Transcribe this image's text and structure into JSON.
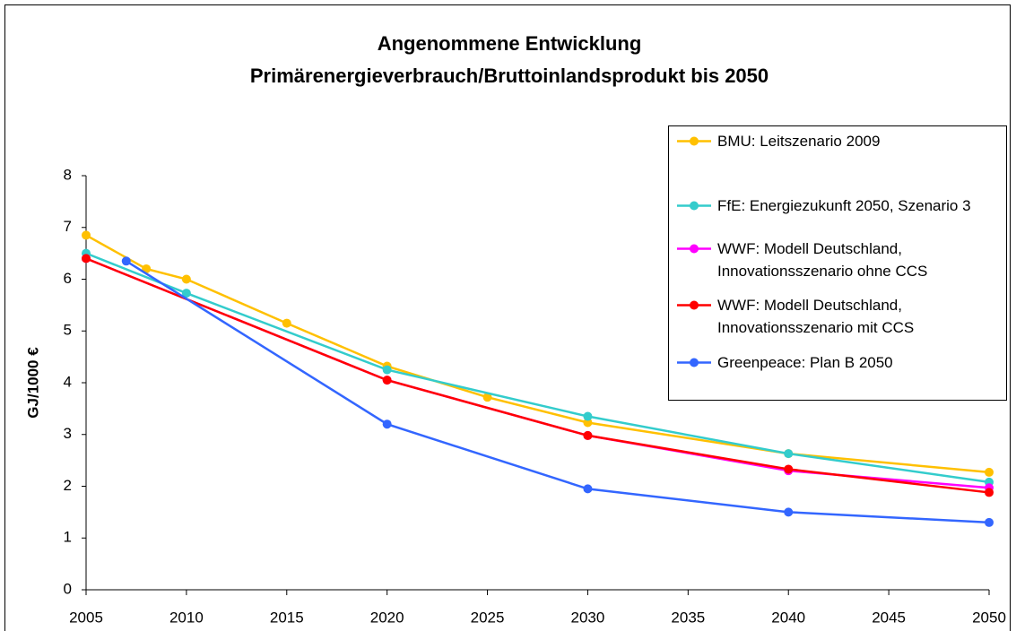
{
  "chart_data": {
    "type": "line",
    "title": [
      "Angenommene Entwicklung",
      "Primärenergieverbrauch/Bruttoinlandsprodukt bis 2050"
    ],
    "y_label": "GJ/1000 €",
    "xlim": [
      2005,
      2050
    ],
    "xticks": [
      2005,
      2010,
      2015,
      2020,
      2025,
      2030,
      2035,
      2040,
      2045,
      2050
    ],
    "ylim": [
      0,
      8
    ],
    "yticks": [
      0,
      1,
      2,
      3,
      4,
      5,
      6,
      7,
      8
    ],
    "legend": "upper right",
    "series": [
      {
        "name": "BMU: Leitszenario 2009",
        "color": "#ffc000",
        "x": [
          2005,
          2008,
          2010,
          2015,
          2020,
          2025,
          2030,
          2040,
          2050
        ],
        "values": [
          6.85,
          6.2,
          6.0,
          5.15,
          4.32,
          3.72,
          3.23,
          2.63,
          2.27
        ]
      },
      {
        "name": "FfE: Energiezukunft 2050, Szenario 3",
        "color": "#33cccc",
        "x": [
          2005,
          2010,
          2020,
          2030,
          2040,
          2050
        ],
        "values": [
          6.5,
          5.73,
          4.25,
          3.35,
          2.63,
          2.08
        ]
      },
      {
        "name": "WWF: Modell Deutschland, Innovationsszenario ohne CCS",
        "color": "#ff00ff",
        "x": [
          2005,
          2020,
          2030,
          2040,
          2050
        ],
        "values": [
          6.4,
          4.05,
          2.98,
          2.3,
          1.97
        ]
      },
      {
        "name": "WWF: Modell Deutschland, Innovationsszenario mit CCS",
        "color": "#ff0000",
        "x": [
          2005,
          2020,
          2030,
          2040,
          2050
        ],
        "values": [
          6.4,
          4.05,
          2.98,
          2.33,
          1.88
        ]
      },
      {
        "name": "Greenpeace: Plan B 2050",
        "color": "#3366ff",
        "x": [
          2007,
          2020,
          2030,
          2040,
          2050
        ],
        "values": [
          6.35,
          3.2,
          1.95,
          1.5,
          1.3
        ]
      }
    ]
  }
}
